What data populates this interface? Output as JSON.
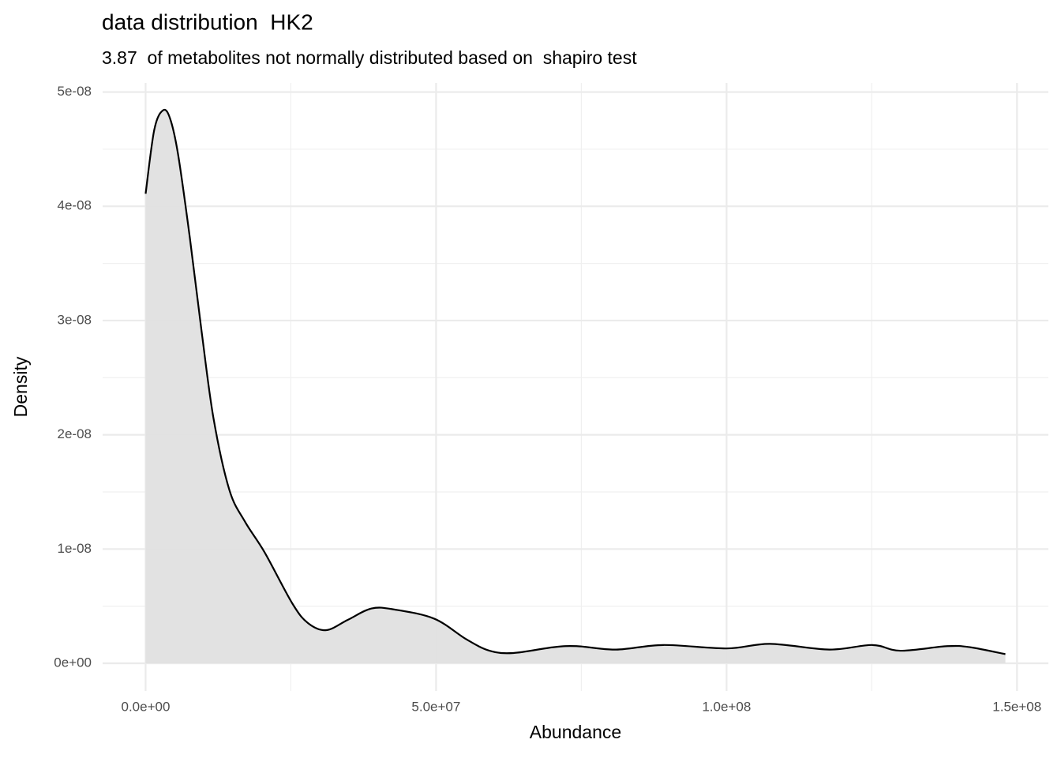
{
  "chart_data": {
    "type": "density",
    "title": "data distribution  HK2",
    "subtitle": "3.87  of metabolites not normally distributed based on  shapiro test",
    "x_label": "Abundance",
    "y_label": "Density",
    "x": [
      0,
      1490000,
      2990000,
      4200000,
      5570000,
      7600000,
      9650000,
      11700000,
      14400000,
      17100000,
      20500000,
      25300000,
      28000000,
      31100000,
      34800000,
      38900000,
      42900000,
      49700000,
      55200000,
      59200000,
      63300000,
      70100000,
      74200000,
      81000000,
      89100000,
      100000000,
      107500000,
      117700000,
      125100000,
      129900000,
      138000000,
      142000000,
      148000000
    ],
    "values": [
      4.11e-08,
      4.67e-08,
      4.84e-08,
      4.77e-08,
      4.46e-08,
      3.73e-08,
      2.9e-08,
      2.14e-08,
      1.52e-08,
      1.24e-08,
      9.7e-09,
      5.2e-09,
      3.5e-09,
      2.9e-09,
      3.8e-09,
      4.8e-09,
      4.7e-09,
      3.9e-09,
      2.1e-09,
      1.1e-09,
      9e-10,
      1.4e-09,
      1.5e-09,
      1.2e-09,
      1.6e-09,
      1.3e-09,
      1.7e-09,
      1.2e-09,
      1.6e-09,
      1.1e-09,
      1.5e-09,
      1.4e-09,
      8e-10
    ],
    "color": "#000000",
    "fill": "#e0e0e0",
    "xlim": [
      -7400000,
      155400000
    ],
    "xticks": [
      {
        "value": 0,
        "label": "0.0e+00"
      },
      {
        "value": 50000000,
        "label": "5.0e+07"
      },
      {
        "value": 100000000,
        "label": "1.0e+08"
      },
      {
        "value": 150000000,
        "label": "1.5e+08"
      }
    ],
    "xminor": [
      25000000,
      75000000,
      125000000
    ],
    "ylim": [
      -2.42e-09,
      5.08e-08
    ],
    "yticks": [
      {
        "value": 0,
        "label": "0e+00"
      },
      {
        "value": 1e-08,
        "label": "1e-08"
      },
      {
        "value": 2e-08,
        "label": "2e-08"
      },
      {
        "value": 3e-08,
        "label": "3e-08"
      },
      {
        "value": 4e-08,
        "label": "4e-08"
      },
      {
        "value": 5e-08,
        "label": "5e-08"
      }
    ],
    "yminor": [
      5e-09,
      1.5e-08,
      2.5e-08,
      3.5e-08,
      4.5e-08
    ],
    "grid": true
  }
}
